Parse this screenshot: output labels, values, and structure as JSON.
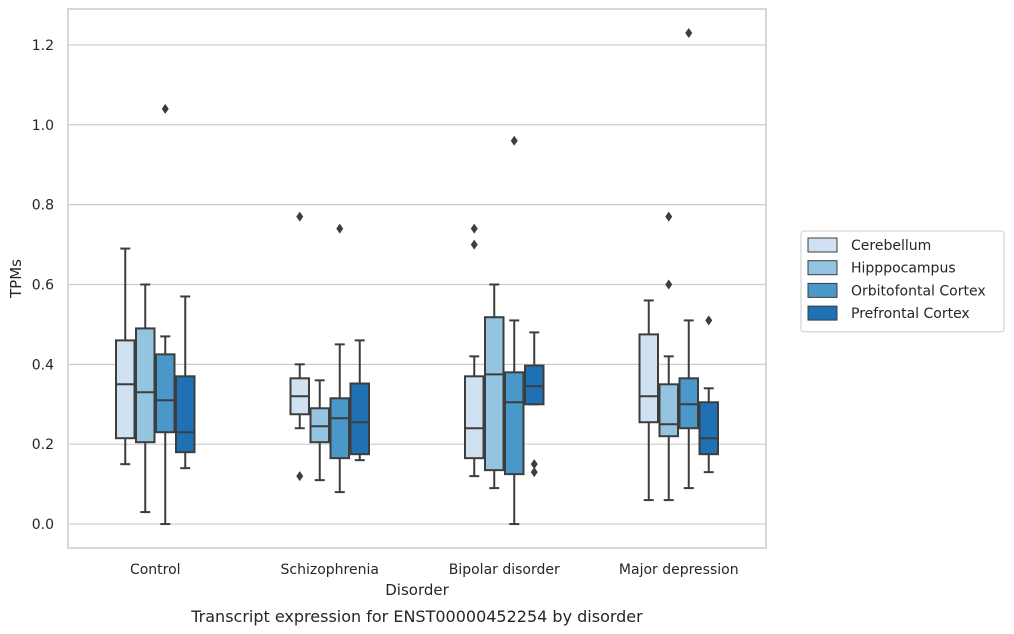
{
  "chart_data": {
    "type": "box",
    "xlabel": "Disorder",
    "ylabel": "TPMs",
    "caption": "Transcript expression for ENST00000452254 by disorder",
    "categories": [
      "Control",
      "Schizophrenia",
      "Bipolar disorder",
      "Major depression"
    ],
    "ylim": [
      -0.06,
      1.29
    ],
    "yticks": [
      "0.0",
      "0.2",
      "0.4",
      "0.6",
      "0.8",
      "1.0",
      "1.2"
    ],
    "grid": true,
    "legend_position": "right",
    "series": [
      {
        "name": "Cerebellum",
        "color": "#d0e1f2",
        "boxes": [
          {
            "whislo": 0.15,
            "q1": 0.215,
            "med": 0.35,
            "q3": 0.46,
            "whishi": 0.69,
            "fliers": []
          },
          {
            "whislo": 0.24,
            "q1": 0.275,
            "med": 0.32,
            "q3": 0.365,
            "whishi": 0.4,
            "fliers": [
              0.12,
              0.77
            ]
          },
          {
            "whislo": 0.12,
            "q1": 0.165,
            "med": 0.24,
            "q3": 0.37,
            "whishi": 0.42,
            "fliers": [
              0.7,
              0.74
            ]
          },
          {
            "whislo": 0.06,
            "q1": 0.255,
            "med": 0.32,
            "q3": 0.475,
            "whishi": 0.56,
            "fliers": []
          }
        ]
      },
      {
        "name": "Hipppocampus",
        "color": "#94c4df",
        "boxes": [
          {
            "whislo": 0.03,
            "q1": 0.205,
            "med": 0.33,
            "q3": 0.49,
            "whishi": 0.6,
            "fliers": []
          },
          {
            "whislo": 0.11,
            "q1": 0.205,
            "med": 0.245,
            "q3": 0.29,
            "whishi": 0.36,
            "fliers": []
          },
          {
            "whislo": 0.09,
            "q1": 0.135,
            "med": 0.375,
            "q3": 0.518,
            "whishi": 0.6,
            "fliers": []
          },
          {
            "whislo": 0.06,
            "q1": 0.22,
            "med": 0.25,
            "q3": 0.35,
            "whishi": 0.42,
            "fliers": [
              0.6,
              0.77
            ]
          }
        ]
      },
      {
        "name": "Orbitofontal Cortex",
        "color": "#4a98c9",
        "boxes": [
          {
            "whislo": 0.0,
            "q1": 0.23,
            "med": 0.31,
            "q3": 0.425,
            "whishi": 0.47,
            "fliers": [
              1.04
            ]
          },
          {
            "whislo": 0.08,
            "q1": 0.165,
            "med": 0.265,
            "q3": 0.315,
            "whishi": 0.45,
            "fliers": [
              0.74
            ]
          },
          {
            "whislo": 0.0,
            "q1": 0.125,
            "med": 0.305,
            "q3": 0.38,
            "whishi": 0.51,
            "fliers": [
              0.96
            ]
          },
          {
            "whislo": 0.09,
            "q1": 0.24,
            "med": 0.3,
            "q3": 0.365,
            "whishi": 0.51,
            "fliers": [
              1.23
            ]
          }
        ]
      },
      {
        "name": "Prefrontal Cortex",
        "color": "#2070b4",
        "boxes": [
          {
            "whislo": 0.14,
            "q1": 0.18,
            "med": 0.23,
            "q3": 0.37,
            "whishi": 0.57,
            "fliers": []
          },
          {
            "whislo": 0.16,
            "q1": 0.175,
            "med": 0.255,
            "q3": 0.352,
            "whishi": 0.46,
            "fliers": []
          },
          {
            "whislo": 0.3,
            "q1": 0.3,
            "med": 0.345,
            "q3": 0.397,
            "whishi": 0.48,
            "fliers": [
              0.13,
              0.15
            ]
          },
          {
            "whislo": 0.13,
            "q1": 0.175,
            "med": 0.215,
            "q3": 0.305,
            "whishi": 0.34,
            "fliers": [
              0.51
            ]
          }
        ]
      }
    ]
  }
}
